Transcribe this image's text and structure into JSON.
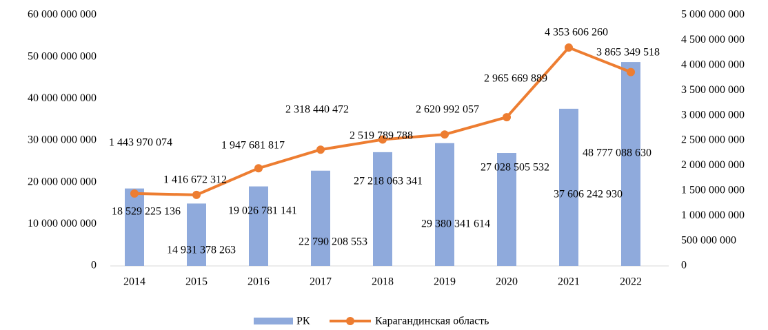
{
  "chart_data": {
    "type": "combo",
    "categories": [
      "2014",
      "2015",
      "2016",
      "2017",
      "2018",
      "2019",
      "2020",
      "2021",
      "2022"
    ],
    "series": [
      {
        "name": "РК",
        "type": "bar",
        "color": "#8faadc",
        "values": [
          18529225136,
          14931378263,
          19026781141,
          22790208553,
          27218063341,
          29380341614,
          27028505532,
          37606242930,
          48777088630
        ],
        "value_labels": [
          "18 529 225 136",
          "14 931 378 263",
          "19 026 781 141",
          "22 790 208 553",
          "27 218 063 341",
          "29 380 341 614",
          "27 028 505 532",
          "37 606 242 930",
          "48 777 088 630"
        ]
      },
      {
        "name": "Карагандинская область",
        "type": "line",
        "axis": "y2",
        "color": "#ed7d31",
        "values": [
          1443970074,
          1416672312,
          1947681817,
          2318440472,
          2519789788,
          2620992057,
          2965669889,
          4353606260,
          3865349518
        ],
        "value_labels": [
          "1 443 970 074",
          "1 416 672 312",
          "1 947 681 817",
          "2 318 440 472",
          "2 519 789 788",
          "2 620 992 057",
          "2 965 669 889",
          "4 353 606 260",
          "3 865 349 518"
        ]
      }
    ],
    "ylim": [
      0,
      60000000000
    ],
    "yticks": [
      0,
      {
        "value": 10000000000,
        "label": "10 000 000 000"
      },
      {
        "value": 20000000000,
        "label": "20 000 000 000"
      },
      {
        "value": 30000000000,
        "label": "30 000 000 000"
      },
      {
        "value": 40000000000,
        "label": "40 000 000 000"
      },
      {
        "value": 50000000000,
        "label": "50 000 000 000"
      },
      {
        "value": 60000000000,
        "label": "60 000 000 000"
      }
    ],
    "y2lim": [
      0,
      5000000000
    ],
    "y2ticks": [
      0,
      {
        "value": 500000000,
        "label": "500 000 000"
      },
      {
        "value": 1000000000,
        "label": "1 000 000 000"
      },
      {
        "value": 1500000000,
        "label": "1 500 000 000"
      },
      {
        "value": 2000000000,
        "label": "2 000 000 000"
      },
      {
        "value": 2500000000,
        "label": "2 500 000 000"
      },
      {
        "value": 3000000000,
        "label": "3 000 000 000"
      },
      {
        "value": 3500000000,
        "label": "3 500 000 000"
      },
      {
        "value": 4000000000,
        "label": "4 000 000 000"
      },
      {
        "value": 4500000000,
        "label": "4 500 000 000"
      },
      {
        "value": 5000000000,
        "label": "5 000 000 000"
      }
    ],
    "grid": false,
    "legend": "bottom"
  }
}
